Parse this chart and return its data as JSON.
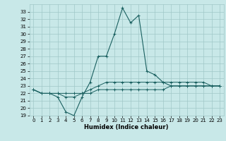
{
  "title": "",
  "xlabel": "Humidex (Indice chaleur)",
  "bg_color": "#c8e8e8",
  "grid_color": "#a0c8c8",
  "line_color": "#1a6060",
  "xlim": [
    -0.5,
    23.5
  ],
  "ylim": [
    19,
    34
  ],
  "yticks": [
    19,
    20,
    21,
    22,
    23,
    24,
    25,
    26,
    27,
    28,
    29,
    30,
    31,
    32,
    33
  ],
  "xticks": [
    0,
    1,
    2,
    3,
    4,
    5,
    6,
    7,
    8,
    9,
    10,
    11,
    12,
    13,
    14,
    15,
    16,
    17,
    18,
    19,
    20,
    21,
    22,
    23
  ],
  "series1_x": [
    0,
    1,
    2,
    3,
    4,
    5,
    6,
    7,
    8,
    9,
    10,
    11,
    12,
    13,
    14,
    15,
    16,
    17,
    18,
    19,
    20,
    21,
    22,
    23
  ],
  "series1_y": [
    22.5,
    22.0,
    22.0,
    22.0,
    21.5,
    21.5,
    22.0,
    22.5,
    23.0,
    23.5,
    23.5,
    23.5,
    23.5,
    23.5,
    23.5,
    23.5,
    23.5,
    23.5,
    23.5,
    23.5,
    23.5,
    23.5,
    23.0,
    23.0
  ],
  "series2_x": [
    0,
    1,
    2,
    3,
    4,
    5,
    6,
    7,
    8,
    9,
    10,
    11,
    12,
    13,
    14,
    15,
    16,
    17,
    18,
    19,
    20,
    21,
    22,
    23
  ],
  "series2_y": [
    22.5,
    22.0,
    22.0,
    22.0,
    22.0,
    22.0,
    22.0,
    22.0,
    22.5,
    22.5,
    22.5,
    22.5,
    22.5,
    22.5,
    22.5,
    22.5,
    22.5,
    23.0,
    23.0,
    23.0,
    23.0,
    23.0,
    23.0,
    23.0
  ],
  "series3_x": [
    0,
    1,
    2,
    3,
    4,
    5,
    6,
    7,
    8,
    9,
    10,
    11,
    12,
    13,
    14,
    15,
    16,
    17,
    18,
    19,
    20,
    21,
    22,
    23
  ],
  "series3_y": [
    22.5,
    22.0,
    22.0,
    21.5,
    19.5,
    19.0,
    21.5,
    23.5,
    27.0,
    27.0,
    30.0,
    33.5,
    31.5,
    32.5,
    25.0,
    24.5,
    23.5,
    23.0,
    23.0,
    23.0,
    23.0,
    23.0,
    23.0,
    23.0
  ],
  "title_fontsize": 7,
  "tick_fontsize": 5,
  "xlabel_fontsize": 6
}
